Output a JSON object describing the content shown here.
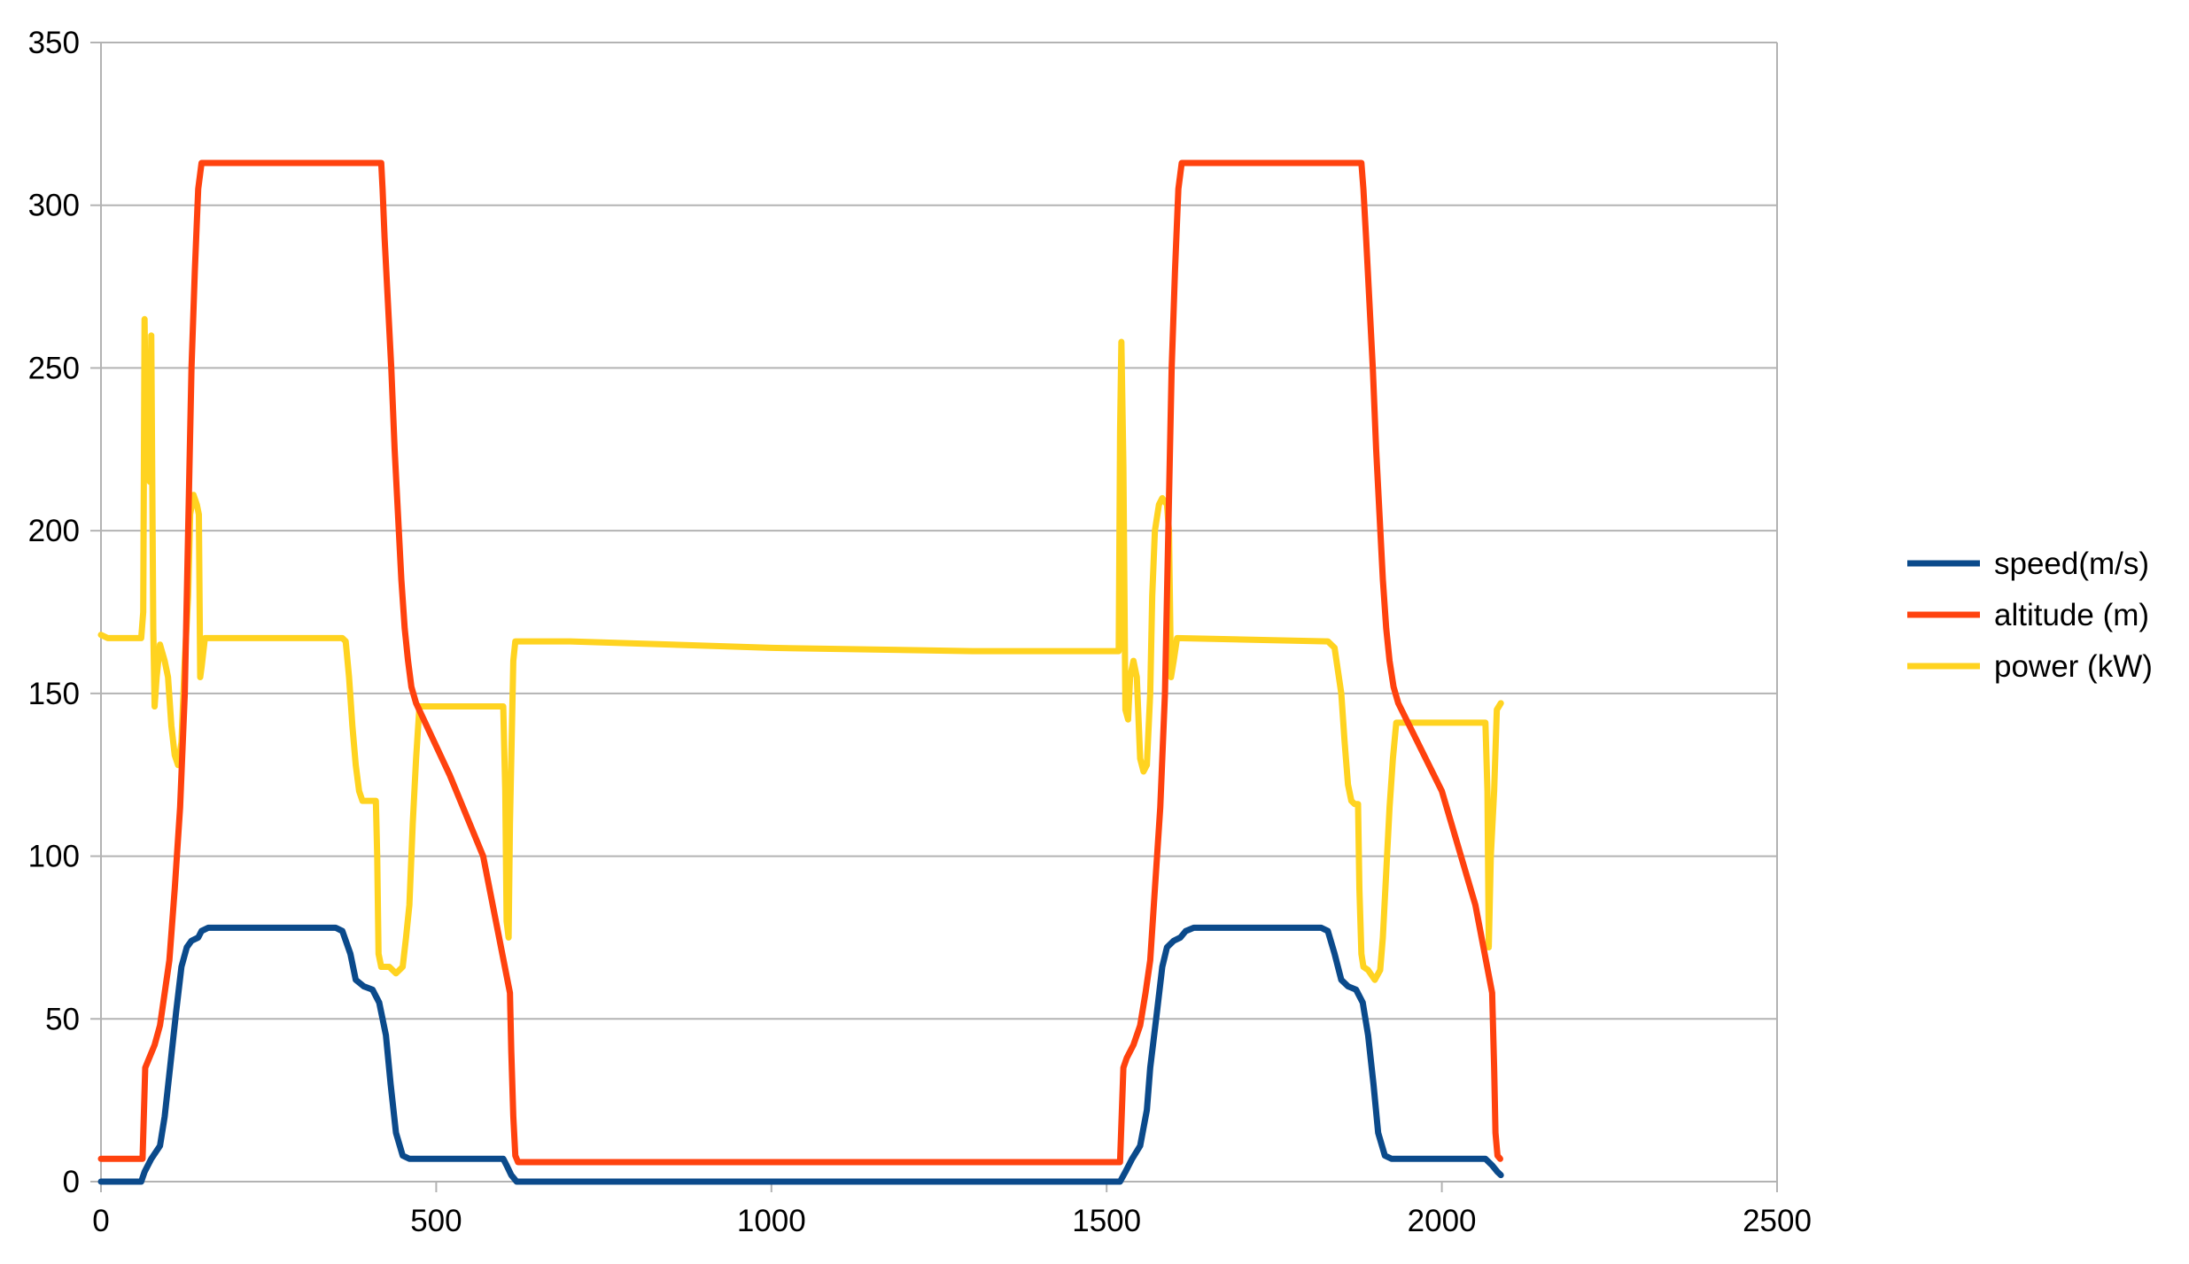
{
  "chart_data": {
    "type": "line",
    "title": "",
    "xlabel": "",
    "ylabel": "",
    "xlim": [
      0,
      2500
    ],
    "ylim": [
      0,
      350
    ],
    "x_ticks": [
      0,
      500,
      1000,
      1500,
      2000,
      2500
    ],
    "y_ticks": [
      0,
      50,
      100,
      150,
      200,
      250,
      300,
      350
    ],
    "grid": "horizontal",
    "legend_position": "right",
    "series": [
      {
        "name": "speed(m/s)",
        "color": "#0b4a8b",
        "points": [
          [
            0,
            0
          ],
          [
            60,
            0
          ],
          [
            65,
            3
          ],
          [
            75,
            7
          ],
          [
            88,
            11
          ],
          [
            95,
            20
          ],
          [
            103,
            35
          ],
          [
            112,
            52
          ],
          [
            120,
            66
          ],
          [
            128,
            72
          ],
          [
            135,
            74
          ],
          [
            145,
            75
          ],
          [
            150,
            77
          ],
          [
            160,
            78
          ],
          [
            350,
            78
          ],
          [
            360,
            77
          ],
          [
            372,
            70
          ],
          [
            380,
            62
          ],
          [
            392,
            60
          ],
          [
            405,
            59
          ],
          [
            415,
            55
          ],
          [
            425,
            45
          ],
          [
            432,
            30
          ],
          [
            440,
            15
          ],
          [
            450,
            8
          ],
          [
            460,
            7
          ],
          [
            600,
            7
          ],
          [
            605,
            5
          ],
          [
            612,
            2
          ],
          [
            620,
            0
          ],
          [
            1520,
            0
          ],
          [
            1528,
            3
          ],
          [
            1538,
            7
          ],
          [
            1550,
            11
          ],
          [
            1560,
            22
          ],
          [
            1565,
            35
          ],
          [
            1575,
            52
          ],
          [
            1583,
            66
          ],
          [
            1590,
            72
          ],
          [
            1600,
            74
          ],
          [
            1610,
            75
          ],
          [
            1618,
            77
          ],
          [
            1630,
            78
          ],
          [
            1820,
            78
          ],
          [
            1830,
            77
          ],
          [
            1840,
            70
          ],
          [
            1850,
            62
          ],
          [
            1860,
            60
          ],
          [
            1872,
            59
          ],
          [
            1882,
            55
          ],
          [
            1890,
            45
          ],
          [
            1898,
            30
          ],
          [
            1905,
            15
          ],
          [
            1915,
            8
          ],
          [
            1925,
            7
          ],
          [
            2065,
            7
          ],
          [
            2075,
            5
          ],
          [
            2083,
            3
          ],
          [
            2088,
            2
          ]
        ]
      },
      {
        "name": "altitude (m)",
        "color": "#ff420e",
        "points": [
          [
            0,
            7
          ],
          [
            62,
            7
          ],
          [
            66,
            35
          ],
          [
            72,
            38
          ],
          [
            80,
            42
          ],
          [
            88,
            48
          ],
          [
            95,
            58
          ],
          [
            102,
            68
          ],
          [
            110,
            90
          ],
          [
            118,
            115
          ],
          [
            125,
            150
          ],
          [
            130,
            200
          ],
          [
            135,
            250
          ],
          [
            140,
            280
          ],
          [
            145,
            305
          ],
          [
            150,
            313
          ],
          [
            418,
            313
          ],
          [
            420,
            305
          ],
          [
            423,
            290
          ],
          [
            428,
            270
          ],
          [
            433,
            250
          ],
          [
            438,
            225
          ],
          [
            443,
            205
          ],
          [
            448,
            185
          ],
          [
            453,
            170
          ],
          [
            458,
            160
          ],
          [
            463,
            152
          ],
          [
            470,
            147
          ],
          [
            520,
            125
          ],
          [
            570,
            100
          ],
          [
            610,
            58
          ],
          [
            612,
            40
          ],
          [
            615,
            20
          ],
          [
            618,
            8
          ],
          [
            622,
            6
          ],
          [
            1520,
            6
          ],
          [
            1525,
            35
          ],
          [
            1530,
            38
          ],
          [
            1540,
            42
          ],
          [
            1550,
            48
          ],
          [
            1558,
            58
          ],
          [
            1565,
            68
          ],
          [
            1572,
            90
          ],
          [
            1580,
            115
          ],
          [
            1587,
            150
          ],
          [
            1592,
            200
          ],
          [
            1597,
            250
          ],
          [
            1602,
            280
          ],
          [
            1607,
            305
          ],
          [
            1612,
            313
          ],
          [
            1880,
            313
          ],
          [
            1883,
            305
          ],
          [
            1887,
            290
          ],
          [
            1892,
            270
          ],
          [
            1897,
            250
          ],
          [
            1902,
            225
          ],
          [
            1907,
            205
          ],
          [
            1912,
            185
          ],
          [
            1917,
            170
          ],
          [
            1922,
            160
          ],
          [
            1928,
            152
          ],
          [
            1935,
            147
          ],
          [
            2000,
            120
          ],
          [
            2050,
            85
          ],
          [
            2075,
            58
          ],
          [
            2078,
            35
          ],
          [
            2080,
            15
          ],
          [
            2083,
            8
          ],
          [
            2087,
            7
          ]
        ]
      },
      {
        "name": "power (kW)",
        "color": "#ffd320",
        "points": [
          [
            0,
            168
          ],
          [
            10,
            167
          ],
          [
            60,
            167
          ],
          [
            63,
            175
          ],
          [
            65,
            265
          ],
          [
            67,
            230
          ],
          [
            70,
            245
          ],
          [
            73,
            215
          ],
          [
            75,
            260
          ],
          [
            78,
            170
          ],
          [
            80,
            146
          ],
          [
            83,
            155
          ],
          [
            88,
            165
          ],
          [
            95,
            160
          ],
          [
            100,
            155
          ],
          [
            105,
            140
          ],
          [
            110,
            131
          ],
          [
            115,
            128
          ],
          [
            120,
            135
          ],
          [
            125,
            160
          ],
          [
            130,
            180
          ],
          [
            133,
            205
          ],
          [
            138,
            211
          ],
          [
            143,
            208
          ],
          [
            146,
            205
          ],
          [
            148,
            155
          ],
          [
            150,
            158
          ],
          [
            155,
            167
          ],
          [
            360,
            167
          ],
          [
            365,
            166
          ],
          [
            370,
            155
          ],
          [
            375,
            140
          ],
          [
            380,
            128
          ],
          [
            385,
            120
          ],
          [
            390,
            117
          ],
          [
            410,
            117
          ],
          [
            412,
            100
          ],
          [
            414,
            70
          ],
          [
            418,
            66
          ],
          [
            430,
            66
          ],
          [
            440,
            64
          ],
          [
            450,
            66
          ],
          [
            455,
            75
          ],
          [
            460,
            85
          ],
          [
            465,
            110
          ],
          [
            470,
            130
          ],
          [
            475,
            146
          ],
          [
            600,
            146
          ],
          [
            603,
            120
          ],
          [
            605,
            80
          ],
          [
            608,
            75
          ],
          [
            610,
            110
          ],
          [
            613,
            140
          ],
          [
            615,
            160
          ],
          [
            618,
            166
          ],
          [
            700,
            166
          ],
          [
            1000,
            164
          ],
          [
            1300,
            163
          ],
          [
            1500,
            163
          ],
          [
            1518,
            163
          ],
          [
            1520,
            230
          ],
          [
            1522,
            258
          ],
          [
            1525,
            220
          ],
          [
            1528,
            145
          ],
          [
            1532,
            142
          ],
          [
            1535,
            155
          ],
          [
            1540,
            160
          ],
          [
            1545,
            155
          ],
          [
            1550,
            130
          ],
          [
            1555,
            126
          ],
          [
            1560,
            128
          ],
          [
            1565,
            150
          ],
          [
            1568,
            180
          ],
          [
            1572,
            200
          ],
          [
            1578,
            208
          ],
          [
            1583,
            210
          ],
          [
            1590,
            208
          ],
          [
            1593,
            200
          ],
          [
            1596,
            155
          ],
          [
            1600,
            160
          ],
          [
            1605,
            167
          ],
          [
            1830,
            166
          ],
          [
            1840,
            164
          ],
          [
            1850,
            150
          ],
          [
            1855,
            135
          ],
          [
            1860,
            122
          ],
          [
            1865,
            117
          ],
          [
            1870,
            116
          ],
          [
            1875,
            116
          ],
          [
            1877,
            90
          ],
          [
            1880,
            70
          ],
          [
            1883,
            66
          ],
          [
            1890,
            65
          ],
          [
            1900,
            62
          ],
          [
            1908,
            65
          ],
          [
            1912,
            75
          ],
          [
            1917,
            95
          ],
          [
            1922,
            115
          ],
          [
            1927,
            130
          ],
          [
            1932,
            141
          ],
          [
            2065,
            141
          ],
          [
            2068,
            120
          ],
          [
            2070,
            72
          ],
          [
            2073,
            100
          ],
          [
            2078,
            120
          ],
          [
            2082,
            145
          ],
          [
            2088,
            147
          ]
        ]
      }
    ]
  }
}
